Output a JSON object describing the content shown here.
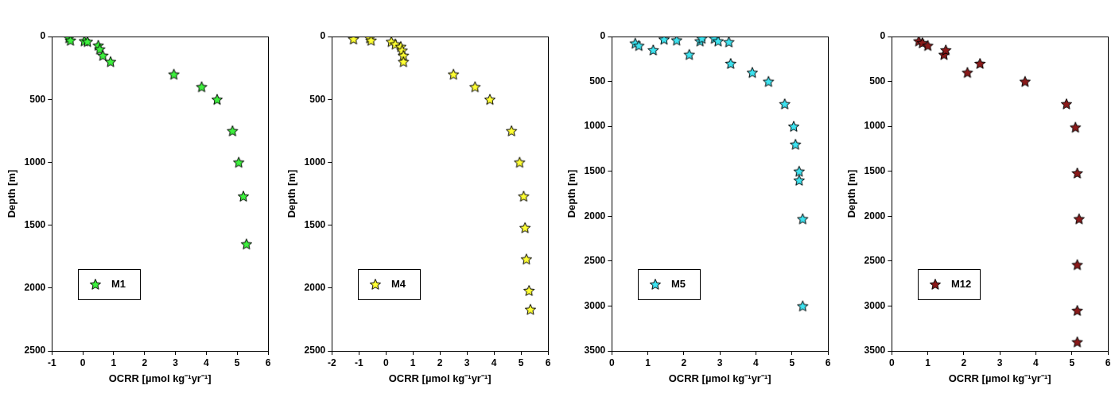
{
  "chart_data": [
    {
      "type": "scatter",
      "x_label": "OCRR [µmol kg⁻¹yr⁻¹]",
      "y_label": "Depth [m]",
      "xlim": [
        -1,
        6
      ],
      "xticks": [
        -1,
        0,
        1,
        2,
        3,
        4,
        5,
        6
      ],
      "ylim": [
        2500,
        0
      ],
      "yticks": [
        0,
        500,
        1000,
        1500,
        2000,
        2500
      ],
      "grid": false,
      "legend": "lower left",
      "series": [
        {
          "name": "M1",
          "color": "#3df03d",
          "marker": "star",
          "x": [
            -0.45,
            -0.4,
            0.05,
            0.15,
            0.5,
            0.55,
            0.65,
            0.9,
            2.95,
            3.85,
            4.35,
            4.85,
            5.05,
            5.2,
            5.3
          ],
          "values": [
            10,
            30,
            35,
            40,
            70,
            100,
            150,
            200,
            300,
            400,
            500,
            750,
            1000,
            1270,
            1650
          ]
        }
      ]
    },
    {
      "type": "scatter",
      "x_label": "OCRR [µmol kg⁻¹yr⁻¹]",
      "y_label": "Depth [m]",
      "xlim": [
        -2,
        6
      ],
      "xticks": [
        -2,
        -1,
        0,
        1,
        2,
        3,
        4,
        5,
        6
      ],
      "ylim": [
        2500,
        0
      ],
      "yticks": [
        0,
        500,
        1000,
        1500,
        2000,
        2500
      ],
      "grid": false,
      "legend": "lower left",
      "series": [
        {
          "name": "M4",
          "color": "#ffff33",
          "marker": "star",
          "x": [
            -1.2,
            -0.6,
            -0.55,
            0.2,
            0.35,
            0.55,
            0.6,
            0.65,
            0.65,
            2.5,
            3.3,
            3.85,
            4.65,
            4.95,
            5.1,
            5.15,
            5.2,
            5.3,
            5.35
          ],
          "values": [
            20,
            10,
            30,
            40,
            60,
            80,
            110,
            150,
            200,
            300,
            400,
            500,
            750,
            1000,
            1270,
            1520,
            1770,
            2020,
            2170
          ]
        }
      ]
    },
    {
      "type": "scatter",
      "x_label": "OCRR [µmol kg⁻¹yr⁻¹]",
      "y_label": "Depth [m]",
      "xlim": [
        0,
        6
      ],
      "xticks": [
        0,
        1,
        2,
        3,
        4,
        5,
        6
      ],
      "ylim": [
        3500,
        0
      ],
      "yticks": [
        0,
        500,
        1000,
        1500,
        2000,
        2500,
        3000,
        3500
      ],
      "grid": false,
      "legend": "lower left",
      "series": [
        {
          "name": "M5",
          "color": "#3de3f0",
          "marker": "star",
          "x": [
            0.65,
            0.75,
            1.15,
            1.45,
            1.8,
            2.15,
            2.45,
            2.5,
            2.85,
            2.95,
            3.25,
            3.3,
            3.9,
            4.35,
            4.8,
            5.05,
            5.1,
            5.2,
            5.2,
            5.3,
            5.3
          ],
          "values": [
            75,
            100,
            150,
            30,
            40,
            200,
            50,
            20,
            20,
            50,
            60,
            300,
            400,
            500,
            750,
            1000,
            1200,
            1500,
            1600,
            2030,
            3000
          ]
        }
      ]
    },
    {
      "type": "scatter",
      "x_label": "OCRR [µmol kg⁻¹yr⁻¹]",
      "y_label": "Depth [m]",
      "xlim": [
        0,
        6
      ],
      "xticks": [
        0,
        1,
        2,
        3,
        4,
        5,
        6
      ],
      "ylim": [
        3500,
        0
      ],
      "yticks": [
        0,
        500,
        1000,
        1500,
        2000,
        2500,
        3000,
        3500
      ],
      "grid": false,
      "legend": "lower left",
      "series": [
        {
          "name": "M12",
          "color": "#8b1a1a",
          "marker": "star",
          "x": [
            0.75,
            0.85,
            1.0,
            1.45,
            1.5,
            2.1,
            2.45,
            3.7,
            4.85,
            5.1,
            5.15,
            5.2,
            5.15,
            5.15,
            5.15
          ],
          "values": [
            50,
            70,
            100,
            200,
            150,
            400,
            300,
            500,
            750,
            1010,
            1520,
            2030,
            2540,
            3050,
            3400
          ]
        }
      ]
    }
  ]
}
